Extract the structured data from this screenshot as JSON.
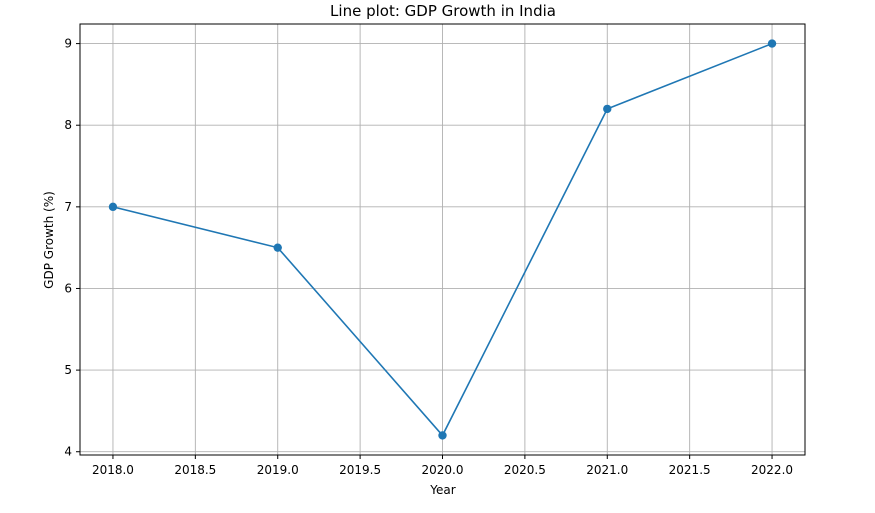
{
  "chart_data": {
    "type": "line",
    "title": "Line plot: GDP Growth in India",
    "xlabel": "Year",
    "ylabel": "GDP Growth (%)",
    "xlim": [
      2017.8,
      2022.2
    ],
    "ylim": [
      3.96,
      9.24
    ],
    "xticks": [
      2018.0,
      2018.5,
      2019.0,
      2019.5,
      2020.0,
      2020.5,
      2021.0,
      2021.5,
      2022.0
    ],
    "xtick_labels": [
      "2018.0",
      "2018.5",
      "2019.0",
      "2019.5",
      "2020.0",
      "2020.5",
      "2021.0",
      "2021.5",
      "2022.0"
    ],
    "yticks": [
      4,
      5,
      6,
      7,
      8,
      9
    ],
    "ytick_labels": [
      "4",
      "5",
      "6",
      "7",
      "8",
      "9"
    ],
    "grid": true,
    "series": [
      {
        "x": [
          2018,
          2019,
          2020,
          2021,
          2022
        ],
        "y": [
          7.0,
          6.5,
          4.2,
          8.2,
          9.0
        ],
        "color": "#1f77b4",
        "marker": "circle"
      }
    ]
  }
}
